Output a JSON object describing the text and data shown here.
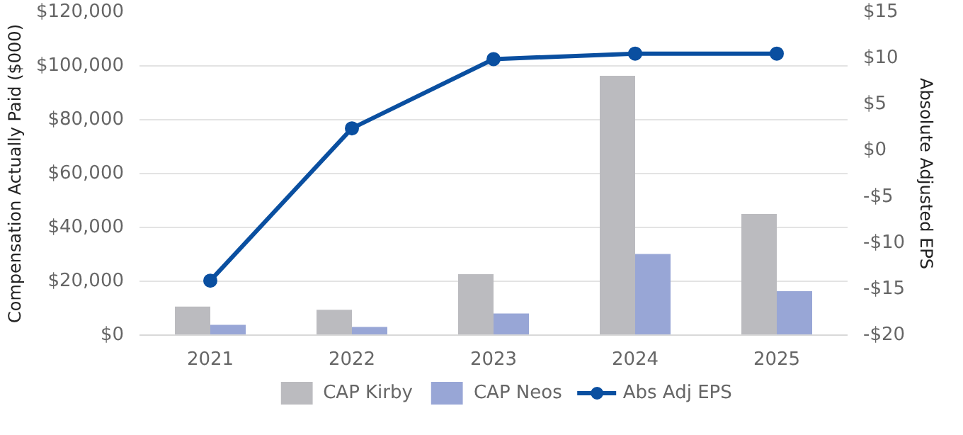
{
  "chart_data": {
    "type": "bar",
    "categories": [
      "2021",
      "2022",
      "2023",
      "2024",
      "2025"
    ],
    "ylabel": "Compensation Actually Paid ($000)",
    "y2label": "Absolute Adjusted EPS",
    "ylim": [
      0,
      120000
    ],
    "yticks": [
      {
        "value": 0,
        "label": "$0"
      },
      {
        "value": 20000,
        "label": "$20,000"
      },
      {
        "value": 40000,
        "label": "$40,000"
      },
      {
        "value": 60000,
        "label": "$60,000"
      },
      {
        "value": 80000,
        "label": "$80,000"
      },
      {
        "value": 100000,
        "label": "$100,000"
      },
      {
        "value": 120000,
        "label": "$120,000"
      }
    ],
    "y2lim": [
      -20,
      15
    ],
    "y2ticks": [
      {
        "value": -20,
        "label": "-$20"
      },
      {
        "value": -15,
        "label": "-$15"
      },
      {
        "value": -10,
        "label": "-$10"
      },
      {
        "value": -5,
        "label": "-$5"
      },
      {
        "value": 0,
        "label": "$0"
      },
      {
        "value": 5,
        "label": "$5"
      },
      {
        "value": 10,
        "label": "$10"
      },
      {
        "value": 15,
        "label": "$15"
      }
    ],
    "series": [
      {
        "name": "CAP Kirby",
        "color": "#bbbbbf",
        "values": [
          10600,
          9400,
          22600,
          96300,
          45000
        ]
      },
      {
        "name": "CAP Neos",
        "color": "#98a6d6",
        "values": [
          3800,
          3000,
          8000,
          30100,
          16300
        ]
      },
      {
        "name": "Abs Adj EPS",
        "type": "line",
        "axis": "y2",
        "color": "#0a4fa0",
        "marker": "circle",
        "values": [
          -14.1,
          2.4,
          9.9,
          10.5,
          10.5
        ]
      }
    ],
    "grid": "y",
    "legend": "bottom"
  }
}
